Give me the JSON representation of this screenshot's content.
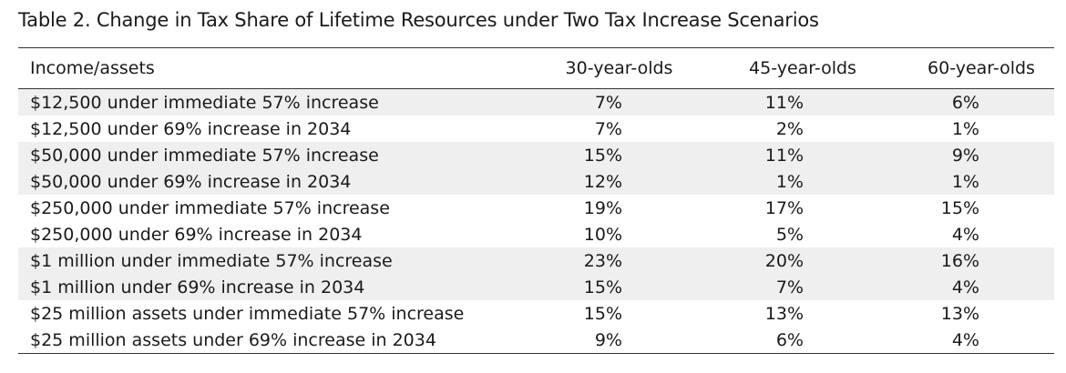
{
  "title": "Table 2. Change in Tax Share of Lifetime Resources under Two Tax Increase Scenarios",
  "table": {
    "headers": [
      "Income/assets",
      "30-year-olds",
      "45-year-olds",
      "60-year-olds"
    ],
    "rows": [
      {
        "label": "$12,500 under immediate 57% increase",
        "v30": "7%",
        "v45": "11%",
        "v60": "6%",
        "shaded": true
      },
      {
        "label": "$12,500 under 69% increase in 2034",
        "v30": "7%",
        "v45": "2%",
        "v60": "1%",
        "shaded": false
      },
      {
        "label": "$50,000 under immediate 57% increase",
        "v30": "15%",
        "v45": "11%",
        "v60": "9%",
        "shaded": true
      },
      {
        "label": "$50,000 under 69% increase in 2034",
        "v30": "12%",
        "v45": "1%",
        "v60": "1%",
        "shaded": true
      },
      {
        "label": "$250,000 under immediate 57% increase",
        "v30": "19%",
        "v45": "17%",
        "v60": "15%",
        "shaded": false
      },
      {
        "label": "$250,000 under 69% increase in 2034",
        "v30": "10%",
        "v45": "5%",
        "v60": "4%",
        "shaded": false
      },
      {
        "label": "$1 million under immediate 57% increase",
        "v30": "23%",
        "v45": "20%",
        "v60": "16%",
        "shaded": true
      },
      {
        "label": "$1 million under 69% increase in 2034",
        "v30": "15%",
        "v45": "7%",
        "v60": "4%",
        "shaded": true
      },
      {
        "label": "$25 million assets under immediate 57% increase",
        "v30": "15%",
        "v45": "13%",
        "v60": "13%",
        "shaded": false
      },
      {
        "label": "$25 million assets under 69% increase in 2034",
        "v30": "9%",
        "v45": "6%",
        "v60": "4%",
        "shaded": false
      }
    ]
  }
}
